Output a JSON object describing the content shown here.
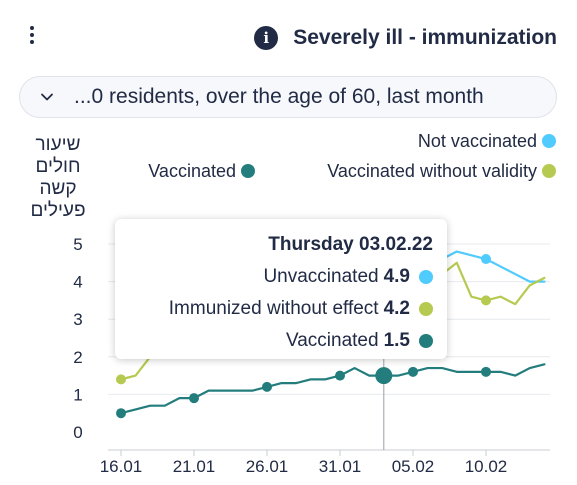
{
  "header": {
    "title": "Severely ill - immunization",
    "menu_icon": "kebab-menu-icon",
    "info_icon": "info-icon"
  },
  "filter": {
    "label": "...0 residents, over the age of 60, last month",
    "icon": "chevron-down-icon"
  },
  "tooltip": {
    "date": "Thursday 03.02.22",
    "rows": [
      {
        "label": "Unvaccinated",
        "value": "4.9",
        "color": "#50cbfd"
      },
      {
        "label": "Immunized without effect",
        "value": "4.2",
        "color": "#b6ca51"
      },
      {
        "label": "Vaccinated",
        "value": "1.5",
        "color": "#237d7d"
      }
    ]
  },
  "chart_data": {
    "type": "line",
    "ylabel": [
      "שיעור",
      "חולים",
      "קשה",
      "פעילים"
    ],
    "ylim": [
      0,
      5
    ],
    "yticks": [
      0,
      1,
      2,
      3,
      4,
      5
    ],
    "xticks": [
      "16.01",
      "21.01",
      "26.01",
      "31.01",
      "05.02",
      "10.02"
    ],
    "x": [
      "16.01",
      "17.01",
      "18.01",
      "19.01",
      "20.01",
      "21.01",
      "22.01",
      "23.01",
      "24.01",
      "25.01",
      "26.01",
      "27.01",
      "28.01",
      "29.01",
      "30.01",
      "31.01",
      "01.02",
      "02.02",
      "03.02",
      "04.02",
      "05.02",
      "06.02",
      "07.02",
      "08.02",
      "09.02",
      "10.02",
      "11.02",
      "12.02",
      "13.02",
      "14.02"
    ],
    "highlight_x": "03.02",
    "grid": true,
    "legend_position": "top",
    "legend": [
      {
        "name": "Not vaccinated",
        "color": "#50cbfd"
      },
      {
        "name": "Vaccinated",
        "color": "#237d7d"
      },
      {
        "name": "Vaccinated without validity",
        "color": "#b6ca51"
      }
    ],
    "series": [
      {
        "name": "Not vaccinated",
        "color": "#50cbfd",
        "values": [
          null,
          null,
          null,
          null,
          null,
          null,
          null,
          null,
          null,
          null,
          null,
          null,
          null,
          null,
          null,
          null,
          null,
          null,
          4.9,
          4.9,
          4.9,
          4.8,
          4.6,
          4.8,
          4.7,
          4.6,
          4.4,
          4.2,
          4.0,
          4.0
        ]
      },
      {
        "name": "Vaccinated without validity",
        "color": "#b6ca51",
        "values": [
          1.4,
          1.5,
          2.0,
          null,
          null,
          null,
          null,
          null,
          null,
          null,
          null,
          null,
          null,
          null,
          null,
          null,
          null,
          null,
          4.2,
          4.4,
          4.4,
          4.5,
          4.2,
          4.5,
          3.6,
          3.5,
          3.6,
          3.4,
          3.9,
          4.1
        ]
      },
      {
        "name": "Vaccinated",
        "color": "#237d7d",
        "values": [
          0.5,
          0.6,
          0.7,
          0.7,
          0.9,
          0.9,
          1.1,
          1.1,
          1.1,
          1.1,
          1.2,
          1.3,
          1.3,
          1.4,
          1.4,
          1.5,
          1.7,
          1.5,
          1.5,
          1.5,
          1.6,
          1.7,
          1.7,
          1.6,
          1.6,
          1.6,
          1.6,
          1.5,
          1.7,
          1.8
        ]
      }
    ],
    "marker_indices": [
      0,
      5,
      10,
      15,
      20,
      25
    ]
  }
}
